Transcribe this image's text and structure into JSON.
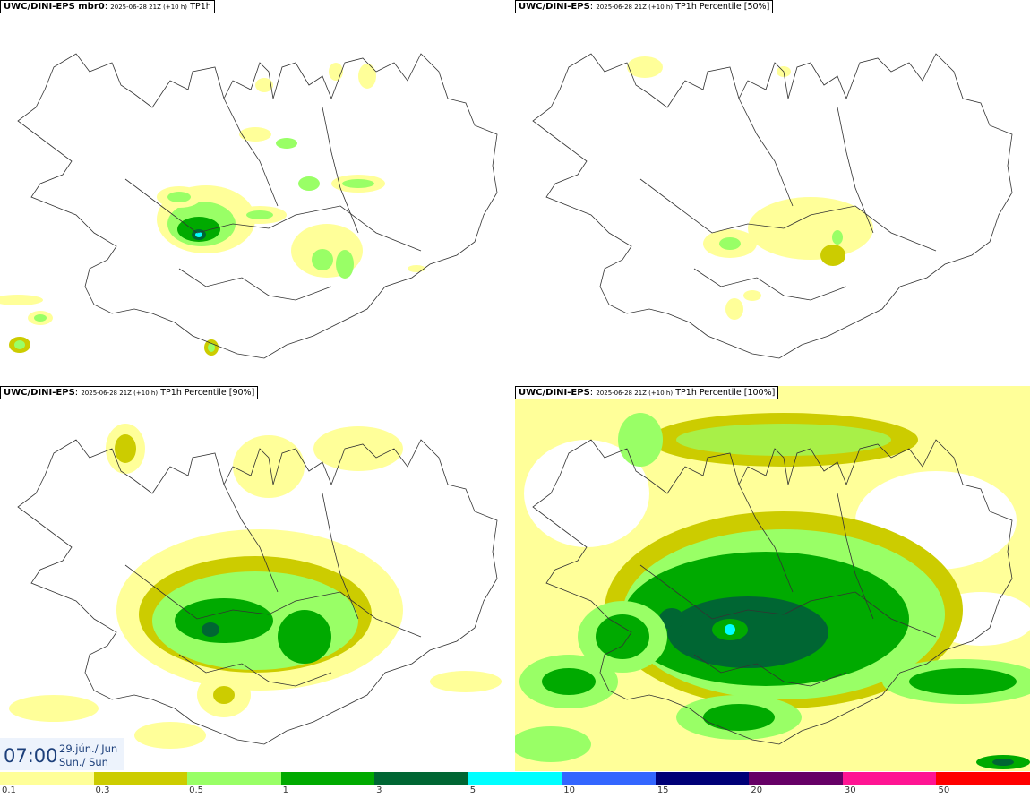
{
  "panels": [
    {
      "id": "mbr0",
      "model": "UWC/DINI-EPS mbr0",
      "run": "2025-06-28 21Z (+10 h)",
      "param": "TP1h"
    },
    {
      "id": "p50",
      "model": "UWC/DINI-EPS",
      "run": "2025-06-28 21Z (+10 h)",
      "param": "TP1h Percentile [50%]"
    },
    {
      "id": "p90",
      "model": "UWC/DINI-EPS",
      "run": "2025-06-28 21Z (+10 h)",
      "param": "TP1h Percentile [90%]"
    },
    {
      "id": "p100",
      "model": "UWC/DINI-EPS",
      "run": "2025-06-28 21Z (+10 h)",
      "param": "TP1h Percentile [100%]"
    }
  ],
  "valid_time": {
    "hour": "07:00",
    "date": "29.jún./ Jun",
    "day": "Sun./ Sun"
  },
  "legend": {
    "bounds": [
      "0.1",
      "0.3",
      "0.5",
      "1",
      "3",
      "5",
      "10",
      "15",
      "20",
      "30",
      "50"
    ],
    "colors": [
      "#ffff99",
      "#cccc00",
      "#99ff66",
      "#00aa00",
      "#006633",
      "#00ffff",
      "#3366ff",
      "#000077",
      "#660066",
      "#ff1493",
      "#ff0000"
    ]
  }
}
